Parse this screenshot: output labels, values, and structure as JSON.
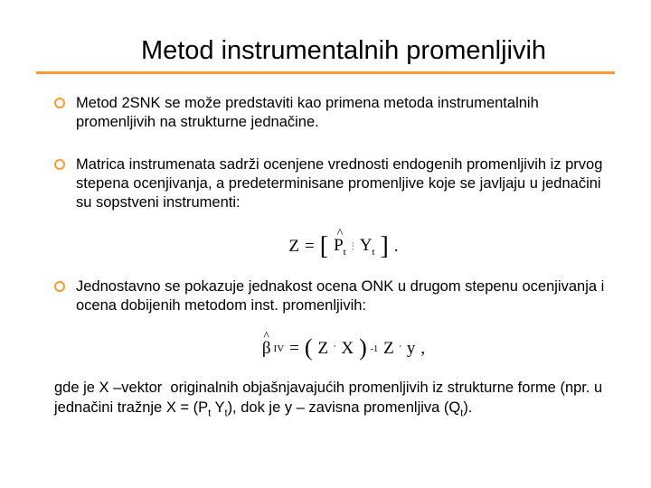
{
  "title": "Metod instrumentalnih promenljivih",
  "bullets": [
    "Metod 2SNK se može predstaviti kao primena metoda instrumentalnih promenljivih na strukturne jednačine.",
    "Matrica instrumenata sadrži ocenjene vrednosti endogenih promenljivih iz prvog stepena ocenjivanja, a predeterminisane promenljive koje se javljaju u jednačini su sopstveni instrumenti:",
    "Jednostavno se pokazuje jednakost ocena ONK u drugom stepenu ocenjivanja i ocena dobijenih metodom inst. promenljivih:"
  ],
  "formula1": {
    "lhs": "Z",
    "eq": "=",
    "P": "P",
    "Y": "Y",
    "t": "t"
  },
  "formula2": {
    "beta": "β",
    "IV": "IV",
    "eq": "=",
    "Z": "Z",
    "X": "X",
    "y": "y",
    "prime": "′",
    "inv": "-1"
  },
  "footer": "gde je X –vektor  originalnih objašnjavajućih promenljivih iz strukturne forme (npr. u jednačini tražnje X = (Pt Yt), dok je y – zavisna promenljiva (Qt).",
  "colors": {
    "accent": "#ff9933",
    "text": "#000000",
    "background": "#ffffff"
  }
}
